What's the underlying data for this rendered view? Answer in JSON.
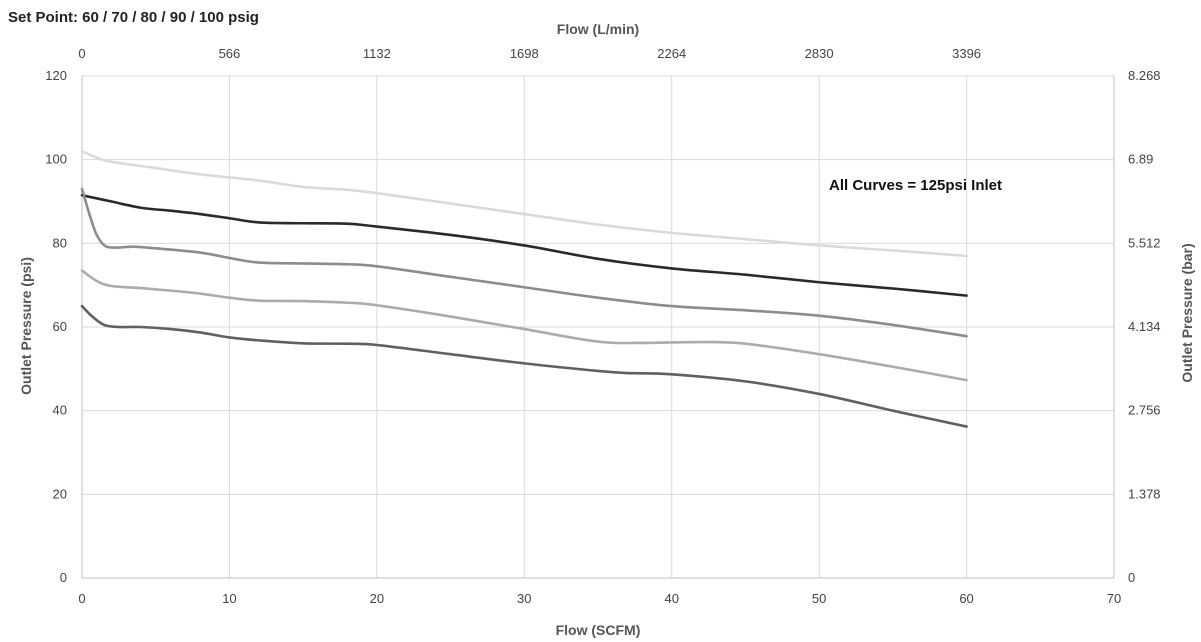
{
  "chart_data": {
    "type": "line",
    "title": "Set Point: 60 / 70 / 80 / 90 / 100 psig",
    "annotation": "All Curves = 125psi Inlet",
    "xlabel": "Flow (SCFM)",
    "x2label": "Flow (L/min)",
    "ylabel": "Outlet Pressure (psi)",
    "y2label": "Outlet Pressure (bar)",
    "xlim": [
      0,
      70
    ],
    "ylim": [
      0,
      120
    ],
    "x_ticks": [
      "0",
      "10",
      "20",
      "30",
      "40",
      "50",
      "60",
      "70"
    ],
    "x2_ticks": [
      "0",
      "566",
      "1132",
      "1698",
      "2264",
      "2830",
      "3396"
    ],
    "y_ticks": [
      "0",
      "20",
      "40",
      "60",
      "80",
      "100",
      "120"
    ],
    "y2_ticks": [
      "0",
      "1.378",
      "2.756",
      "4.134",
      "5.512",
      "6.89",
      "8.268"
    ],
    "grid": true,
    "series": [
      {
        "color": "#dadada",
        "points": [
          [
            0,
            102
          ],
          [
            1,
            100.5
          ],
          [
            2,
            99.5
          ],
          [
            5,
            98
          ],
          [
            8,
            96.5
          ],
          [
            12,
            95
          ],
          [
            15,
            93.5
          ],
          [
            18,
            92.8
          ],
          [
            20,
            92
          ],
          [
            25,
            89.5
          ],
          [
            30,
            87
          ],
          [
            35,
            84.5
          ],
          [
            40,
            82.5
          ],
          [
            45,
            81
          ],
          [
            50,
            79.5
          ],
          [
            55,
            78.3
          ],
          [
            60,
            77
          ]
        ]
      },
      {
        "color": "#2a2a2a",
        "points": [
          [
            0,
            91.5
          ],
          [
            2,
            90
          ],
          [
            4,
            88.5
          ],
          [
            6,
            87.8
          ],
          [
            8,
            87
          ],
          [
            10,
            86
          ],
          [
            12,
            85
          ],
          [
            15,
            84.8
          ],
          [
            18,
            84.7
          ],
          [
            20,
            84
          ],
          [
            25,
            82
          ],
          [
            30,
            79.5
          ],
          [
            35,
            76.3
          ],
          [
            40,
            74
          ],
          [
            45,
            72.5
          ],
          [
            50,
            70.7
          ],
          [
            55,
            69.2
          ],
          [
            60,
            67.5
          ]
        ]
      },
      {
        "color": "#8c8c8c",
        "points": [
          [
            0,
            93
          ],
          [
            0.5,
            87
          ],
          [
            1,
            82
          ],
          [
            1.6,
            79.3
          ],
          [
            2.5,
            79
          ],
          [
            3.5,
            79.2
          ],
          [
            5,
            78.8
          ],
          [
            8,
            77.8
          ],
          [
            10,
            76.5
          ],
          [
            12,
            75.4
          ],
          [
            15,
            75.2
          ],
          [
            18,
            75
          ],
          [
            20,
            74.5
          ],
          [
            25,
            72
          ],
          [
            30,
            69.5
          ],
          [
            35,
            67
          ],
          [
            40,
            65
          ],
          [
            45,
            64
          ],
          [
            50,
            62.7
          ],
          [
            55,
            60.5
          ],
          [
            60,
            57.8
          ]
        ]
      },
      {
        "color": "#ababab",
        "points": [
          [
            0,
            73.5
          ],
          [
            1,
            71
          ],
          [
            2,
            69.8
          ],
          [
            4,
            69.3
          ],
          [
            6,
            68.7
          ],
          [
            8,
            68
          ],
          [
            10,
            67
          ],
          [
            12,
            66.3
          ],
          [
            15,
            66.2
          ],
          [
            18,
            65.8
          ],
          [
            20,
            65.2
          ],
          [
            25,
            62.5
          ],
          [
            30,
            59.5
          ],
          [
            35,
            56.5
          ],
          [
            38,
            56.2
          ],
          [
            42,
            56.4
          ],
          [
            45,
            56
          ],
          [
            50,
            53.5
          ],
          [
            55,
            50.5
          ],
          [
            60,
            47.3
          ]
        ]
      },
      {
        "color": "#606060",
        "points": [
          [
            0,
            65
          ],
          [
            0.7,
            62.5
          ],
          [
            1.5,
            60.5
          ],
          [
            2.5,
            60
          ],
          [
            4,
            60
          ],
          [
            6,
            59.5
          ],
          [
            8,
            58.7
          ],
          [
            10,
            57.5
          ],
          [
            12,
            56.8
          ],
          [
            15,
            56.1
          ],
          [
            18,
            56
          ],
          [
            20,
            55.7
          ],
          [
            25,
            53.5
          ],
          [
            30,
            51.3
          ],
          [
            35,
            49.5
          ],
          [
            37,
            49
          ],
          [
            40,
            48.7
          ],
          [
            45,
            47
          ],
          [
            50,
            44
          ],
          [
            55,
            40
          ],
          [
            60,
            36.2
          ]
        ]
      }
    ]
  }
}
